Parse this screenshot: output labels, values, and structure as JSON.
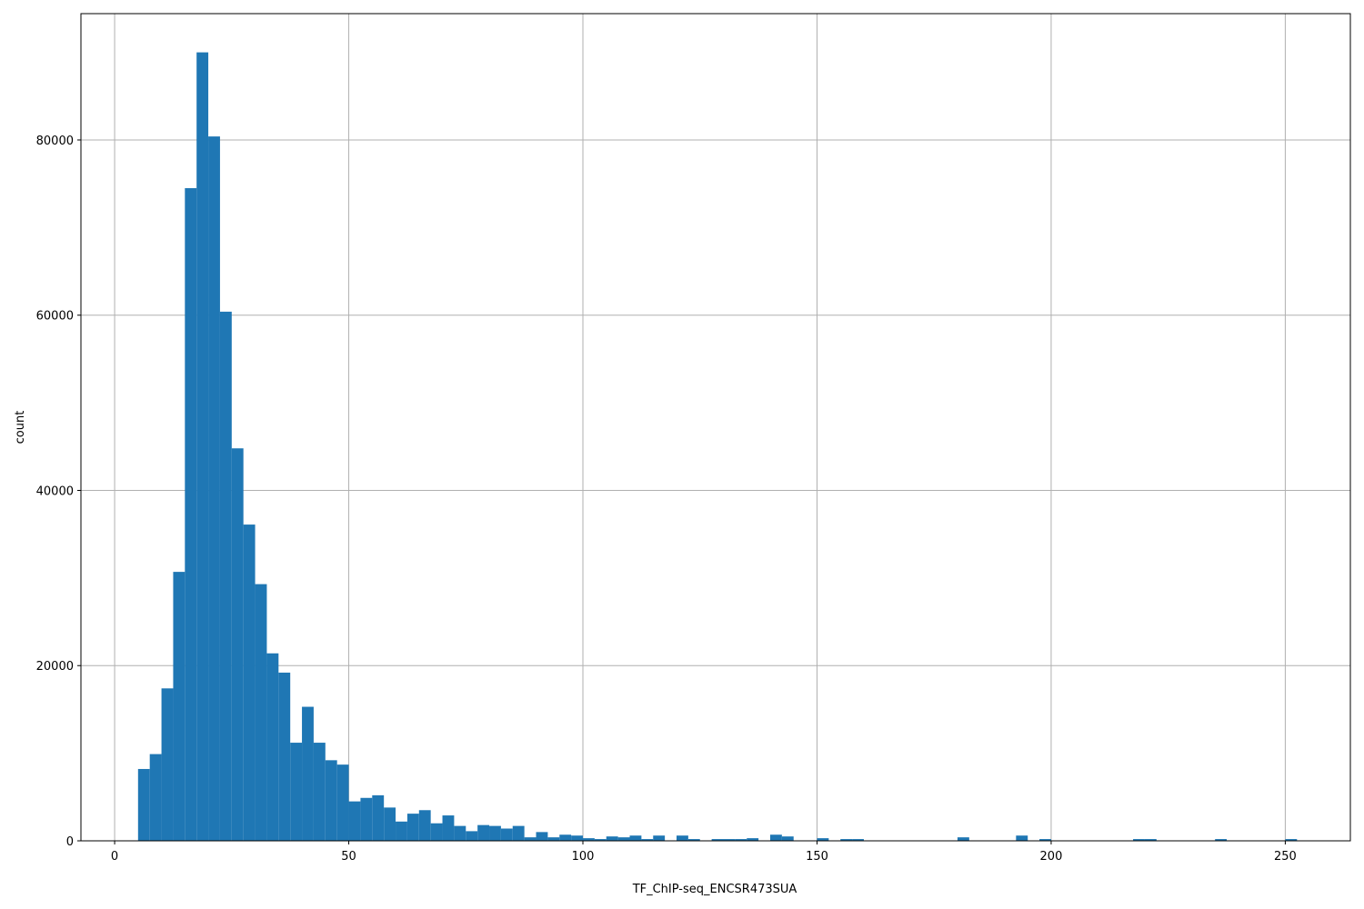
{
  "chart_data": {
    "type": "histogram",
    "xlabel": "TF_ChIP-seq_ENCSR473SUA",
    "ylabel": "count",
    "color": "#1f77b4",
    "grid": true,
    "bins": [
      5,
      7.5,
      10,
      12.5,
      15,
      17.5,
      20,
      22.5,
      25,
      27.5,
      30,
      32.5,
      35,
      37.5,
      40,
      42.5,
      45,
      47.5,
      50,
      52.5,
      55,
      57.5,
      60,
      62.5,
      65,
      67.5,
      70,
      72.5,
      75,
      77.5,
      80,
      82.5,
      85,
      87.5,
      90,
      92.5,
      95,
      97.5,
      100,
      102.5,
      105,
      107.5,
      110,
      112.5,
      115,
      117.5,
      120,
      122.5,
      125,
      127.5,
      130,
      132.5,
      135,
      137.5,
      140,
      142.5,
      145,
      147.5,
      150,
      152.5,
      155,
      157.5,
      160,
      162.5,
      165,
      167.5,
      170,
      172.5,
      175,
      177.5,
      180,
      182.5,
      185,
      187.5,
      190,
      192.5,
      195,
      197.5,
      200,
      202.5,
      205,
      207.5,
      210,
      212.5,
      215,
      217.5,
      220,
      222.5,
      225,
      227.5,
      230,
      232.5,
      235,
      237.5,
      240,
      242.5,
      245,
      247.5,
      250,
      252.5,
      255
    ],
    "values": [
      8200,
      9900,
      17400,
      30700,
      74500,
      90000,
      80400,
      60400,
      44800,
      36100,
      29300,
      21400,
      19200,
      11200,
      15300,
      11200,
      9200,
      8700,
      4500,
      4900,
      5200,
      3800,
      2200,
      3100,
      3500,
      2000,
      2900,
      1700,
      1100,
      1800,
      1700,
      1400,
      1700,
      400,
      1000,
      400,
      700,
      600,
      300,
      200,
      500,
      400,
      600,
      200,
      600,
      0,
      600,
      200,
      0,
      200,
      200,
      200,
      300,
      0,
      700,
      500,
      0,
      0,
      300,
      0,
      200,
      200,
      0,
      0,
      0,
      0,
      0,
      0,
      0,
      0,
      400,
      0,
      0,
      0,
      0,
      600,
      0,
      200,
      0,
      0,
      0,
      0,
      0,
      0,
      0,
      200,
      200,
      0,
      0,
      0,
      0,
      0,
      200,
      0,
      0,
      0,
      0,
      0,
      200,
      0
    ],
    "xlim": [
      -7.2,
      263.9
    ],
    "ylim": [
      0,
      94420
    ],
    "xticks": [
      0,
      50,
      100,
      150,
      200,
      250
    ],
    "yticks": [
      0,
      20000,
      40000,
      60000,
      80000
    ]
  }
}
